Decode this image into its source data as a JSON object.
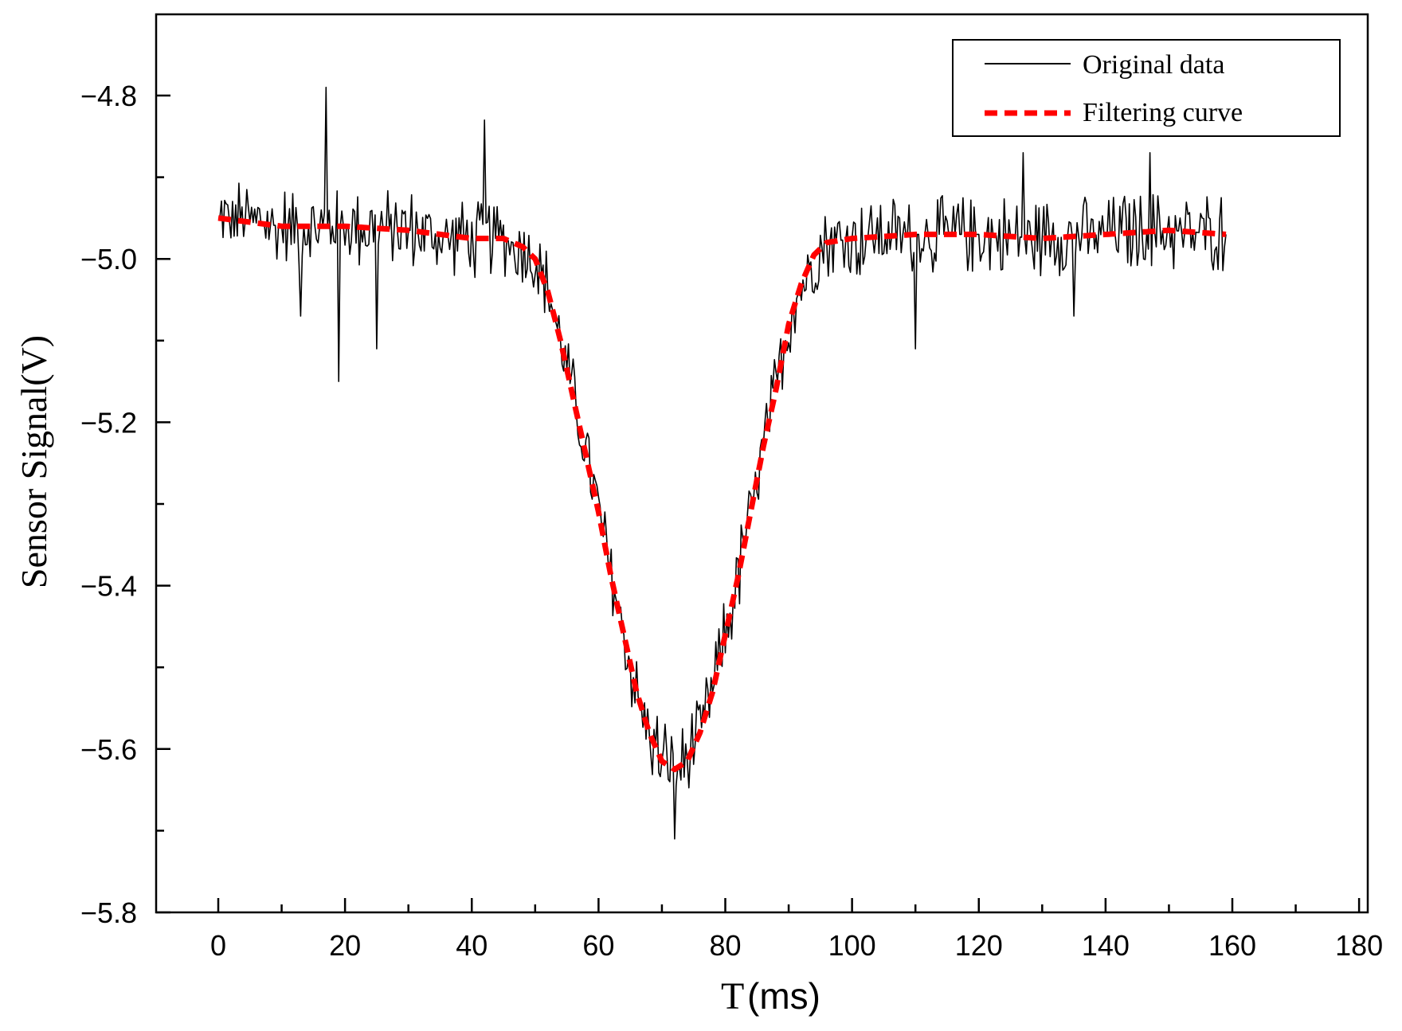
{
  "chart_data": {
    "type": "line",
    "title": "",
    "xlabel": "T (ms)",
    "xlabel_main": "T",
    "xlabel_unit": "(ms)",
    "ylabel": "Sensor Signal(V)",
    "xlim": [
      -10,
      180
    ],
    "ylim": [
      -5.8,
      -4.7
    ],
    "xticks": [
      0,
      20,
      40,
      60,
      80,
      100,
      120,
      140,
      160,
      180
    ],
    "xtick_labels": [
      "0",
      "20",
      "40",
      "60",
      "80",
      "100",
      "120",
      "140",
      "160",
      "180"
    ],
    "yticks": [
      -5.8,
      -5.6,
      -5.4,
      -5.2,
      -5.0,
      -4.8
    ],
    "ytick_labels": [
      "−5.8",
      "−5.6",
      "−5.4",
      "−5.2",
      "−5.0",
      "−4.8"
    ],
    "grid": false,
    "legend_position": "top-right",
    "series": [
      {
        "name": "Original data",
        "style": "solid",
        "color": "#000000",
        "x_start": 0,
        "x_end": 159,
        "x_step": 0.25,
        "noise_amplitude": 0.04,
        "spikes": [
          {
            "x": 17,
            "y": -4.79
          },
          {
            "x": 42,
            "y": -4.83
          },
          {
            "x": 19,
            "y": -5.15
          },
          {
            "x": 25,
            "y": -5.11
          },
          {
            "x": 110,
            "y": -5.11
          },
          {
            "x": 127,
            "y": -4.87
          },
          {
            "x": 147,
            "y": -4.87
          },
          {
            "x": 72,
            "y": -5.71
          },
          {
            "x": 13,
            "y": -5.07
          },
          {
            "x": 135,
            "y": -5.07
          }
        ]
      },
      {
        "name": "Filtering curve",
        "style": "dashed",
        "color": "#ff0000",
        "x": [
          0,
          5,
          10,
          20,
          30,
          40,
          45,
          48,
          50,
          52,
          54,
          56,
          58,
          60,
          62,
          64,
          66,
          68,
          70,
          72,
          74,
          76,
          78,
          80,
          82,
          84,
          86,
          88,
          90,
          92,
          94,
          96,
          100,
          110,
          120,
          130,
          140,
          150,
          159
        ],
        "y": [
          -4.95,
          -4.955,
          -4.96,
          -4.96,
          -4.965,
          -4.975,
          -4.975,
          -4.985,
          -5.0,
          -5.04,
          -5.1,
          -5.17,
          -5.24,
          -5.31,
          -5.39,
          -5.46,
          -5.53,
          -5.58,
          -5.615,
          -5.625,
          -5.615,
          -5.58,
          -5.53,
          -5.46,
          -5.39,
          -5.31,
          -5.23,
          -5.16,
          -5.08,
          -5.03,
          -4.995,
          -4.98,
          -4.975,
          -4.97,
          -4.97,
          -4.975,
          -4.97,
          -4.965,
          -4.97
        ]
      }
    ]
  }
}
